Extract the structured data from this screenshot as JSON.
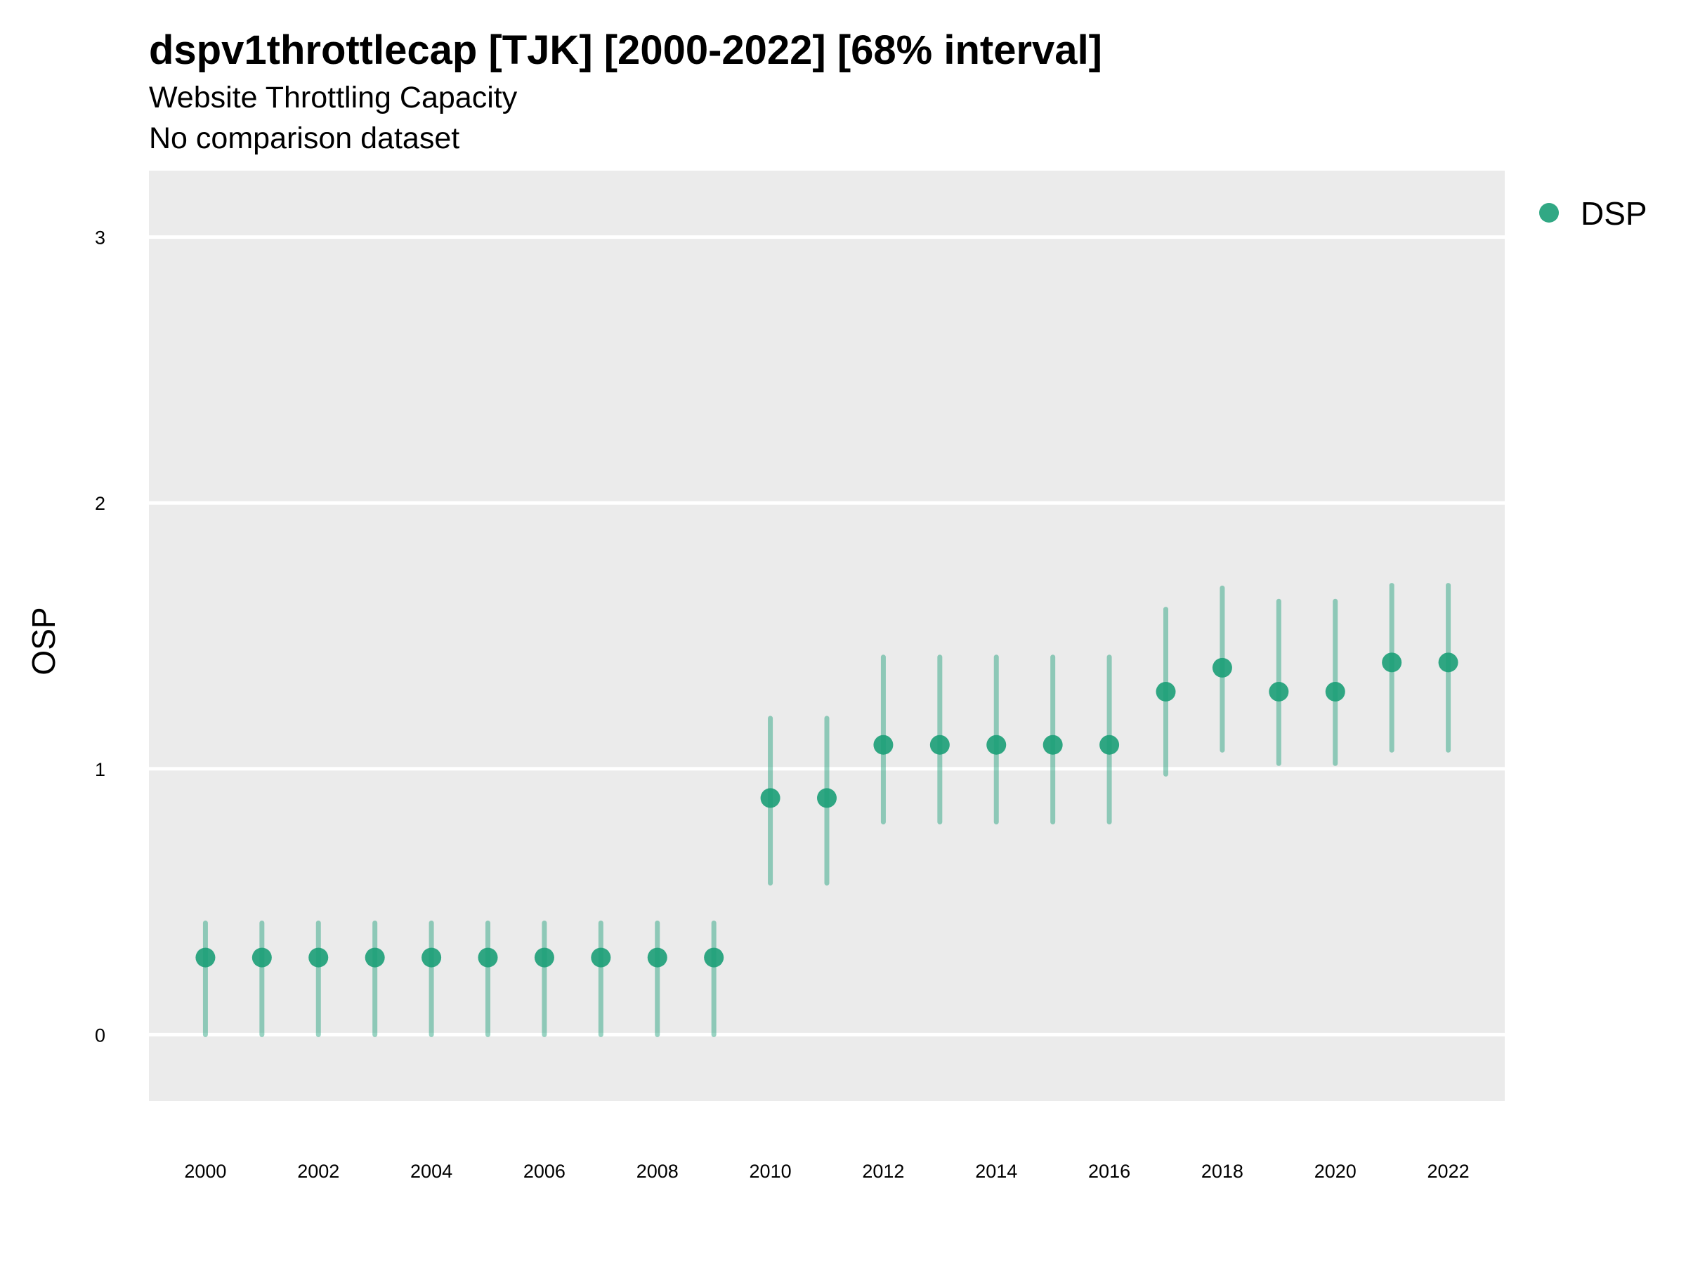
{
  "title": "dspv1throttlecap [TJK] [2000-2022] [68% interval]",
  "subtitle": "Website Throttling Capacity",
  "caption": "No comparison dataset",
  "colors": {
    "series": "#1b9e77",
    "panel": "#ebebeb",
    "grid": "#ffffff"
  },
  "chart_data": {
    "type": "scatter",
    "ylabel": "OSP",
    "xlabel": "",
    "xlim": [
      1999,
      2023
    ],
    "ylim": [
      -0.25,
      3.25
    ],
    "grid": true,
    "legend_position": "right",
    "y_ticks": [
      0,
      1,
      2,
      3
    ],
    "x_ticks": [
      2000,
      2002,
      2004,
      2006,
      2008,
      2010,
      2012,
      2014,
      2016,
      2018,
      2020,
      2022
    ],
    "series": [
      {
        "name": "DSP",
        "x": [
          2000,
          2001,
          2002,
          2003,
          2004,
          2005,
          2006,
          2007,
          2008,
          2009,
          2010,
          2011,
          2012,
          2013,
          2014,
          2015,
          2016,
          2017,
          2018,
          2019,
          2020,
          2021,
          2022
        ],
        "y": [
          0.29,
          0.29,
          0.29,
          0.29,
          0.29,
          0.29,
          0.29,
          0.29,
          0.29,
          0.29,
          0.89,
          0.89,
          1.09,
          1.09,
          1.09,
          1.09,
          1.09,
          1.29,
          1.38,
          1.29,
          1.29,
          1.4,
          1.4
        ],
        "lower": [
          0.0,
          0.0,
          0.0,
          0.0,
          0.0,
          0.0,
          0.0,
          0.0,
          0.0,
          0.0,
          0.57,
          0.57,
          0.8,
          0.8,
          0.8,
          0.8,
          0.8,
          0.98,
          1.07,
          1.02,
          1.02,
          1.07,
          1.07
        ],
        "upper": [
          0.42,
          0.42,
          0.42,
          0.42,
          0.42,
          0.42,
          0.42,
          0.42,
          0.42,
          0.42,
          1.19,
          1.19,
          1.42,
          1.42,
          1.42,
          1.42,
          1.42,
          1.6,
          1.68,
          1.63,
          1.63,
          1.69,
          1.69
        ]
      }
    ]
  }
}
